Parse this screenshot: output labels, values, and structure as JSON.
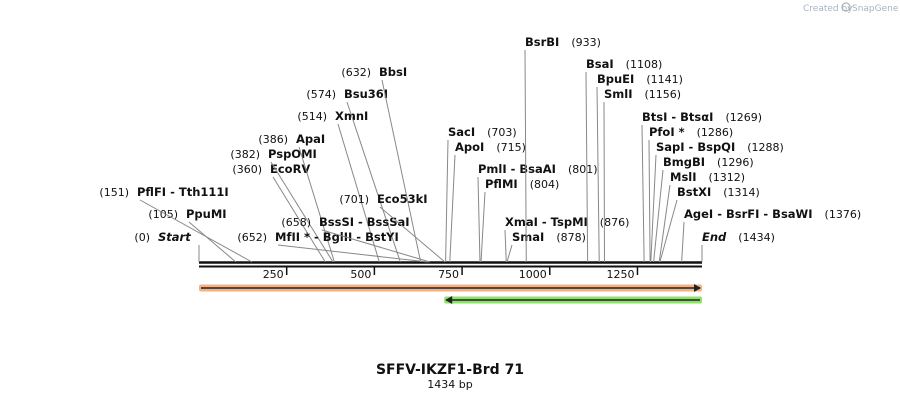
{
  "watermark": {
    "text": "Created by",
    "brand": "SnapGene",
    "icon": "snapgene-logo-icon"
  },
  "sequence": {
    "name": "SFFV-IKZF1-Brd 71",
    "length_label": "1434 bp",
    "length": 1434
  },
  "ruler": {
    "ticks": [
      250,
      500,
      750,
      1000,
      1250
    ]
  },
  "features": [
    {
      "name": "orange-feature",
      "start": 1,
      "end": 1434,
      "strand": "+",
      "color": "#f4b183"
    },
    {
      "name": "green-feature",
      "start": 700,
      "end": 1434,
      "strand": "-",
      "color": "#8ee26a"
    }
  ],
  "sites": [
    {
      "pos": 0,
      "label": "Start",
      "pos_label": "(0)",
      "special": true
    },
    {
      "pos": 1434,
      "label": "End",
      "pos_label": "(1434)",
      "special": true
    },
    {
      "pos": 105,
      "label": "PpuMI",
      "pos_label": "(105)"
    },
    {
      "pos": 151,
      "label": "PflFI  - Tth111I",
      "pos_label": "(151)"
    },
    {
      "pos": 360,
      "label": "EcoRV",
      "pos_label": "(360)"
    },
    {
      "pos": 382,
      "label": "PspOMI",
      "pos_label": "(382)"
    },
    {
      "pos": 386,
      "label": "ApaI",
      "pos_label": "(386)"
    },
    {
      "pos": 514,
      "label": "XmnI",
      "pos_label": "(514)"
    },
    {
      "pos": 574,
      "label": "Bsu36I",
      "pos_label": "(574)"
    },
    {
      "pos": 632,
      "label": "BbsI",
      "pos_label": "(632)"
    },
    {
      "pos": 652,
      "label": "MfII * - BglII  - BstYI",
      "pos_label": "(652)"
    },
    {
      "pos": 658,
      "label": "BssSI  - BssSaI",
      "pos_label": "(658)"
    },
    {
      "pos": 701,
      "label": "Eco53kI",
      "pos_label": "(701)"
    },
    {
      "pos": 703,
      "label": "SacI",
      "pos_label": "(703)"
    },
    {
      "pos": 715,
      "label": "ApoI",
      "pos_label": "(715)"
    },
    {
      "pos": 804,
      "label": "PflMI",
      "pos_label": "(804)"
    },
    {
      "pos": 801,
      "label": "PmlI  - BsaAI",
      "pos_label": "(801)"
    },
    {
      "pos": 876,
      "label": "XmaI  - TspMI",
      "pos_label": "(876)"
    },
    {
      "pos": 878,
      "label": "SmaI",
      "pos_label": "(878)"
    },
    {
      "pos": 933,
      "label": "BsrBI",
      "pos_label": "(933)"
    },
    {
      "pos": 1108,
      "label": "BsaI",
      "pos_label": "(1108)"
    },
    {
      "pos": 1141,
      "label": "BpuEI",
      "pos_label": "(1141)"
    },
    {
      "pos": 1156,
      "label": "SmlI",
      "pos_label": "(1156)"
    },
    {
      "pos": 1269,
      "label": "BtsI  - BtsαI",
      "pos_label": "(1269)"
    },
    {
      "pos": 1286,
      "label": "PfoI *",
      "pos_label": "(1286)"
    },
    {
      "pos": 1288,
      "label": "SapI  - BspQI",
      "pos_label": "(1288)"
    },
    {
      "pos": 1296,
      "label": "BmgBI",
      "pos_label": "(1296)"
    },
    {
      "pos": 1312,
      "label": "MslI",
      "pos_label": "(1312)"
    },
    {
      "pos": 1314,
      "label": "BstXI",
      "pos_label": "(1314)"
    },
    {
      "pos": 1376,
      "label": "AgeI  - BsrFI  - BsaWI",
      "pos_label": "(1376)"
    }
  ]
}
